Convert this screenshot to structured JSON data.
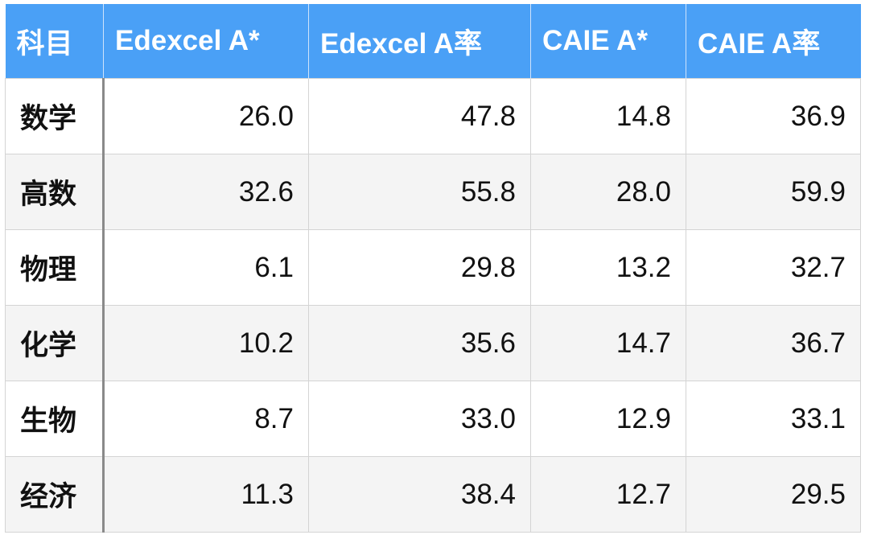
{
  "table": {
    "headers": [
      "科目",
      "Edexcel A*",
      "Edexcel A率",
      "CAIE A*",
      "CAIE A率"
    ],
    "rows": [
      {
        "subject": "数学",
        "values": [
          "26.0",
          "47.8",
          "14.8",
          "36.9"
        ]
      },
      {
        "subject": "高数",
        "values": [
          "32.6",
          "55.8",
          "28.0",
          "59.9"
        ]
      },
      {
        "subject": "物理",
        "values": [
          "6.1",
          "29.8",
          "13.2",
          "32.7"
        ]
      },
      {
        "subject": "化学",
        "values": [
          "10.2",
          "35.6",
          "14.7",
          "36.7"
        ]
      },
      {
        "subject": "生物",
        "values": [
          "8.7",
          "33.0",
          "12.9",
          "33.1"
        ]
      },
      {
        "subject": "经济",
        "values": [
          "11.3",
          "38.4",
          "12.7",
          "29.5"
        ]
      }
    ]
  },
  "colors": {
    "header_bg": "#4aa0f6",
    "header_text": "#ffffff",
    "stripe_bg": "#f4f4f4"
  }
}
